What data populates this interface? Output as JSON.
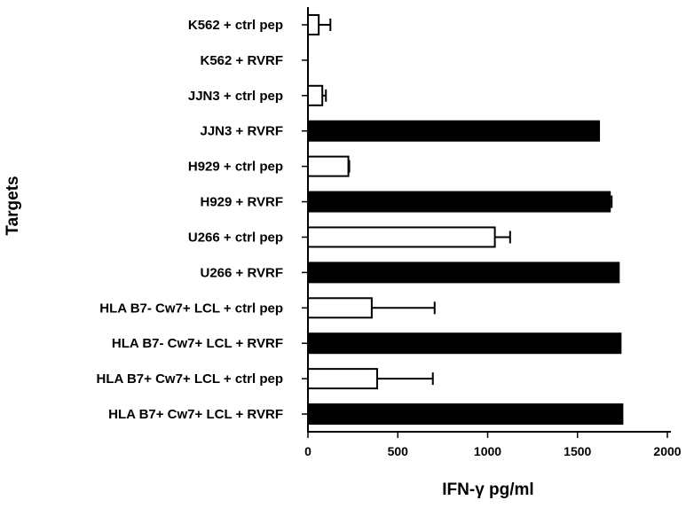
{
  "chart_data": {
    "type": "bar",
    "orientation": "horizontal",
    "xlabel": "IFN-γ pg/ml",
    "ylabel": "Targets",
    "xlim": [
      0,
      2000
    ],
    "xticks": [
      0,
      500,
      1000,
      1500,
      2000
    ],
    "categories": [
      "K562 + ctrl pep",
      "K562 + RVRF",
      "JJN3 + ctrl pep",
      "JJN3 + RVRF",
      "H929 + ctrl pep",
      "H929 + RVRF",
      "U266 + ctrl pep",
      "U266 + RVRF",
      "HLA B7- Cw7+ LCL + ctrl pep",
      "HLA B7- Cw7+ LCL + RVRF",
      "HLA B7+ Cw7+ LCL + ctrl pep",
      "HLA B7+ Cw7+ LCL + RVRF"
    ],
    "values": [
      60,
      0,
      80,
      1620,
      225,
      1680,
      1040,
      1730,
      355,
      1740,
      385,
      1750
    ],
    "errors": [
      65,
      0,
      20,
      0,
      5,
      10,
      85,
      0,
      350,
      0,
      310,
      0
    ],
    "fills": [
      "open",
      "filled",
      "open",
      "filled",
      "open",
      "filled",
      "open",
      "filled",
      "open",
      "filled",
      "open",
      "filled"
    ],
    "grid": false,
    "colors": {
      "filled": "#000000",
      "open": "#ffffff",
      "stroke": "#000000"
    }
  }
}
